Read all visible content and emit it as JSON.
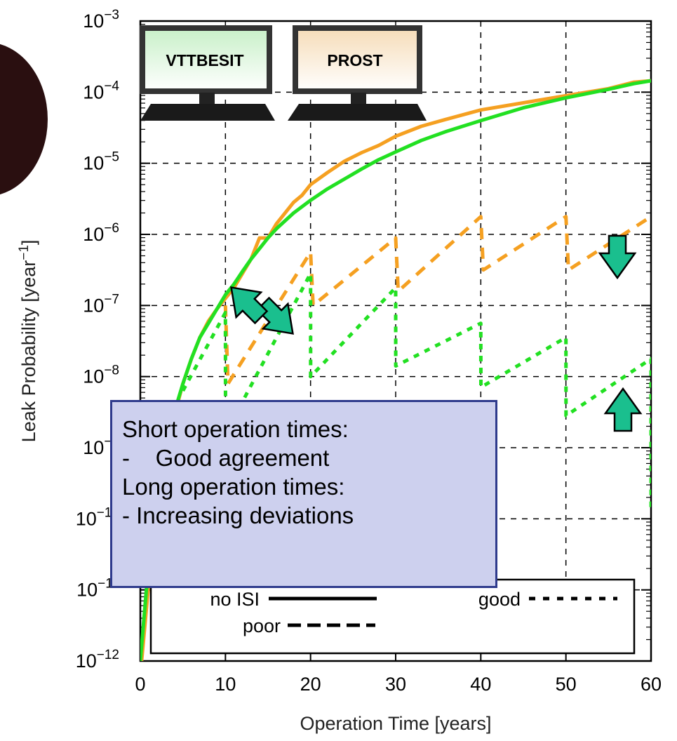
{
  "chart_data": {
    "type": "line",
    "xlabel": "Operation Time [years]",
    "ylabel": "Leak Probability [year",
    "ylabel_sup": "−1",
    "ylabel_close": "]",
    "xlim": [
      0,
      60
    ],
    "ylim_log10": [
      -12,
      -3
    ],
    "log_scale_y": true,
    "grid": true,
    "x_ticks": [
      "0",
      "10",
      "20",
      "30",
      "40",
      "50",
      "60"
    ],
    "y_ticks": [
      {
        "exp": "−3",
        "v": -3
      },
      {
        "exp": "−4",
        "v": -4
      },
      {
        "exp": "−5",
        "v": -5
      },
      {
        "exp": "−6",
        "v": -6
      },
      {
        "exp": "−7",
        "v": -7
      },
      {
        "exp": "−8",
        "v": -8
      },
      {
        "exp": "−9",
        "v": -9
      },
      {
        "exp": "−10",
        "v": -10
      },
      {
        "exp": "−11",
        "v": -11
      },
      {
        "exp": "−12",
        "v": -12
      }
    ],
    "legend": {
      "position": "bottom",
      "entries": [
        {
          "label": "no ISI",
          "style": "solid"
        },
        {
          "label": "poor",
          "style": "dashed"
        },
        {
          "label": "good",
          "style": "dotted"
        }
      ]
    },
    "colors": {
      "PROST": "#f5a021",
      "VTTBESIT": "#22e022"
    },
    "series": [
      {
        "tool": "PROST",
        "isi": "no ISI",
        "style": "solid",
        "x": [
          0,
          1,
          2,
          3,
          4,
          5,
          6,
          7,
          8,
          9,
          10,
          11,
          12,
          13,
          14,
          15,
          16,
          17,
          18,
          19,
          20,
          22,
          24,
          26,
          28,
          30,
          33,
          36,
          40,
          45,
          50,
          55,
          58,
          60
        ],
        "log10_y": [
          -12.2,
          -10.9,
          -9.9,
          -9.1,
          -8.55,
          -8.1,
          -7.75,
          -7.45,
          -7.22,
          -7.05,
          -6.9,
          -6.75,
          -6.55,
          -6.35,
          -6.05,
          -6.05,
          -5.85,
          -5.7,
          -5.55,
          -5.45,
          -5.3,
          -5.13,
          -4.97,
          -4.85,
          -4.75,
          -4.62,
          -4.48,
          -4.38,
          -4.25,
          -4.15,
          -4.05,
          -3.95,
          -3.86,
          -3.84
        ]
      },
      {
        "tool": "VTTBESIT",
        "isi": "no ISI",
        "style": "solid",
        "x": [
          0,
          1,
          2,
          3,
          4,
          5,
          6,
          7,
          8,
          9,
          10,
          11,
          12,
          13,
          14,
          15,
          16,
          18,
          20,
          22,
          24,
          26,
          28,
          30,
          33,
          36,
          40,
          45,
          50,
          55,
          58,
          60
        ],
        "log10_y": [
          -12.0,
          -10.6,
          -9.7,
          -9.0,
          -8.5,
          -8.1,
          -7.75,
          -7.45,
          -7.25,
          -7.05,
          -6.85,
          -6.7,
          -6.52,
          -6.35,
          -6.2,
          -6.05,
          -5.92,
          -5.7,
          -5.52,
          -5.36,
          -5.22,
          -5.08,
          -4.95,
          -4.84,
          -4.68,
          -4.55,
          -4.4,
          -4.22,
          -4.08,
          -3.96,
          -3.88,
          -3.84
        ]
      },
      {
        "tool": "PROST",
        "isi": "poor",
        "style": "dashed",
        "x": [
          10,
          10.3,
          20,
          20.3,
          30,
          30.3,
          40,
          40.3,
          50,
          50.3,
          60
        ],
        "log10_y": [
          -7.0,
          -8.1,
          -6.25,
          -7.0,
          -6.05,
          -6.8,
          -5.75,
          -6.5,
          -5.75,
          -6.5,
          -5.75
        ]
      },
      {
        "tool": "VTTBESIT",
        "isi": "good",
        "style": "dotted",
        "x": [
          5,
          10,
          10.01,
          20,
          20.01,
          30,
          30.01,
          40,
          40.01,
          50,
          50.01,
          60,
          60.01
        ],
        "log10_y": [
          -8.2,
          -7.1,
          -8.8,
          -6.55,
          -8.0,
          -6.75,
          -7.85,
          -7.25,
          -8.15,
          -7.45,
          -8.55,
          -7.75,
          -9.85
        ]
      }
    ],
    "annotations": {
      "monitors": [
        "VTTBESIT",
        "PROST"
      ],
      "callout_lines": [
        "Short operation times:",
        "-    Good agreement",
        "Long operation times:",
        "- Increasing deviations"
      ]
    }
  }
}
